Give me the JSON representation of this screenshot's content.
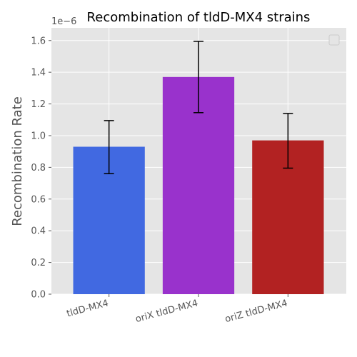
{
  "chart_data": {
    "type": "bar",
    "title": "Recombination of tldD-MX4 strains",
    "ylabel": "Recombination Rate",
    "xlabel": "",
    "y_offset_label": "1e−6",
    "categories": [
      "tldD-MX4",
      "oriX tldD-MX4",
      "oriZ tldD-MX4"
    ],
    "values": [
      9.3e-07,
      1.37e-06,
      9.7e-07
    ],
    "error_low": [
      7.6e-07,
      1.145e-06,
      7.95e-07
    ],
    "error_high": [
      1.095e-06,
      1.595e-06,
      1.14e-06
    ],
    "colors": [
      "#4169E1",
      "#9932CC",
      "#B22222"
    ],
    "ylim": [
      0,
      1.68e-06
    ],
    "yticks": [
      0,
      2e-07,
      4e-07,
      6e-07,
      8e-07,
      1e-06,
      1.2e-06,
      1.4e-06,
      1.6e-06
    ],
    "ytick_labels": [
      "0.0",
      "0.2",
      "0.4",
      "0.6",
      "0.8",
      "1.0",
      "1.2",
      "1.4",
      "1.6"
    ],
    "grid": true,
    "legend": "top-right",
    "style": {
      "plot_bg": "#E5E5E5",
      "grid_color": "#FFFFFF",
      "error_color": "#000000"
    }
  }
}
